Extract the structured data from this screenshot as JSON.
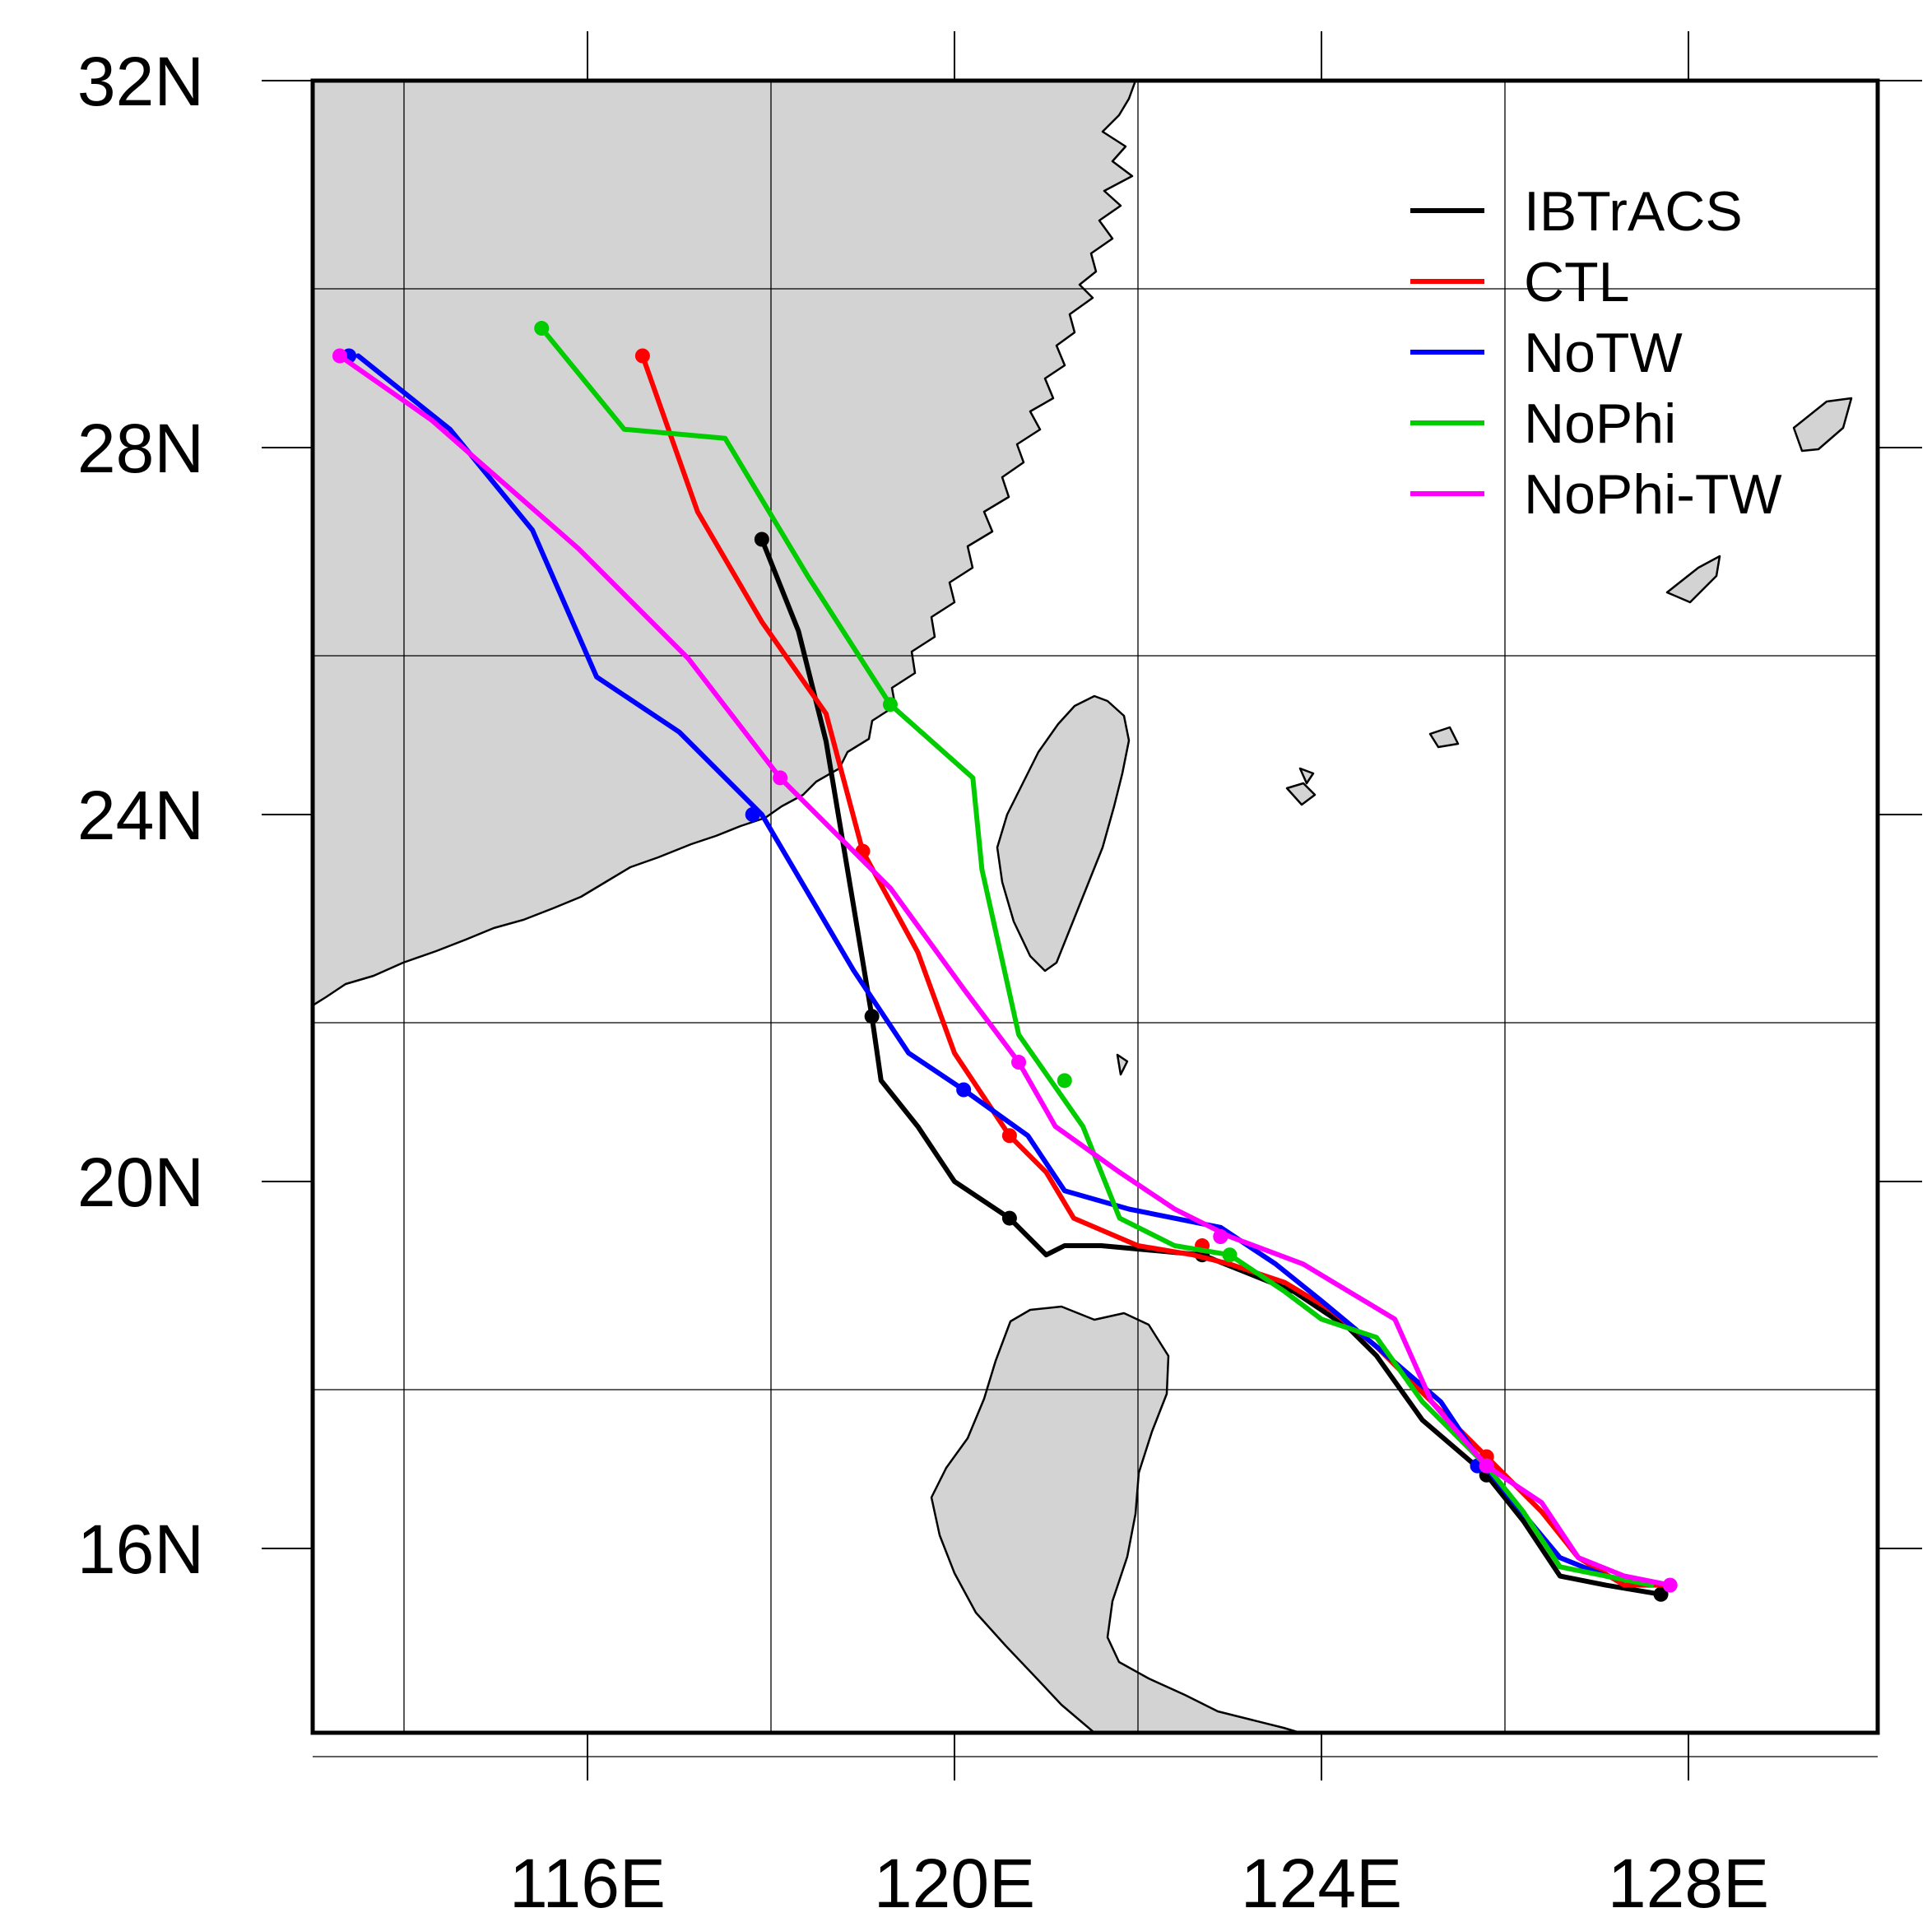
{
  "map": {
    "lat_ticks": [
      {
        "label": "32N",
        "value": 32
      },
      {
        "label": "28N",
        "value": 28
      },
      {
        "label": "24N",
        "value": 24
      },
      {
        "label": "20N",
        "value": 20
      },
      {
        "label": "16N",
        "value": 16
      }
    ],
    "lon_ticks": [
      {
        "label": "116E",
        "value": 116
      },
      {
        "label": "120E",
        "value": 120
      },
      {
        "label": "124E",
        "value": 124
      },
      {
        "label": "128E",
        "value": 128
      }
    ],
    "land_color": "#d3d3d3",
    "water_color": "#ffffff",
    "grid": true
  },
  "legend": {
    "placement": "top-right",
    "entries": [
      {
        "label": "IBTrACS",
        "color": "#000000"
      },
      {
        "label": "CTL",
        "color": "#ff0000"
      },
      {
        "label": "NoTW",
        "color": "#0000ff"
      },
      {
        "label": "NoPhi",
        "color": "#00cc00"
      },
      {
        "label": "NoPhi-TW",
        "color": "#ff00ff"
      }
    ]
  },
  "chart_data": {
    "type": "line",
    "x_axis": "longitude (°E)",
    "y_axis": "latitude (°N)",
    "xlim": [
      113.0,
      130.0
    ],
    "ylim": [
      14.0,
      32.0
    ],
    "series": [
      {
        "name": "IBTrACS",
        "color": "#000000",
        "points": [
          [
            127.7,
            15.5
          ],
          [
            127.1,
            15.6
          ],
          [
            126.6,
            15.7
          ],
          [
            126.2,
            16.3
          ],
          [
            125.8,
            16.8
          ],
          [
            125.1,
            17.4
          ],
          [
            124.6,
            18.1
          ],
          [
            124.3,
            18.4
          ],
          [
            123.7,
            18.8
          ],
          [
            123.2,
            19.0
          ],
          [
            122.7,
            19.2
          ],
          [
            121.6,
            19.3
          ],
          [
            121.2,
            19.3
          ],
          [
            121.0,
            19.2
          ],
          [
            120.6,
            19.6
          ],
          [
            120.0,
            20.0
          ],
          [
            119.6,
            20.6
          ],
          [
            119.2,
            21.1
          ],
          [
            119.1,
            21.8
          ],
          [
            118.9,
            23.0
          ],
          [
            118.6,
            24.8
          ],
          [
            118.3,
            26.0
          ],
          [
            117.9,
            27.0
          ]
        ],
        "markers": [
          [
            127.7,
            15.5
          ],
          [
            125.8,
            16.8
          ],
          [
            122.7,
            19.2
          ],
          [
            120.6,
            19.6
          ],
          [
            119.1,
            21.8
          ],
          [
            117.9,
            27.0
          ]
        ]
      },
      {
        "name": "CTL",
        "color": "#ff0000",
        "points": [
          [
            127.8,
            15.6
          ],
          [
            127.3,
            15.6
          ],
          [
            126.8,
            15.9
          ],
          [
            126.4,
            16.4
          ],
          [
            125.8,
            17.0
          ],
          [
            125.3,
            17.5
          ],
          [
            124.6,
            18.2
          ],
          [
            124.1,
            18.6
          ],
          [
            123.6,
            18.9
          ],
          [
            123.0,
            19.1
          ],
          [
            122.6,
            19.2
          ],
          [
            122.0,
            19.3
          ],
          [
            121.3,
            19.6
          ],
          [
            121.0,
            20.1
          ],
          [
            120.6,
            20.5
          ],
          [
            120.0,
            21.4
          ],
          [
            119.6,
            22.5
          ],
          [
            119.0,
            23.6
          ],
          [
            118.6,
            25.1
          ],
          [
            117.9,
            26.1
          ],
          [
            117.2,
            27.3
          ],
          [
            116.6,
            29.0
          ]
        ],
        "markers": [
          [
            125.8,
            17.0
          ],
          [
            122.7,
            19.3
          ],
          [
            120.6,
            20.5
          ],
          [
            119.0,
            23.6
          ],
          [
            116.6,
            29.0
          ]
        ]
      },
      {
        "name": "NoTW",
        "color": "#0000ff",
        "points": [
          [
            127.6,
            15.6
          ],
          [
            127.1,
            15.7
          ],
          [
            126.6,
            15.9
          ],
          [
            126.1,
            16.5
          ],
          [
            125.7,
            17.0
          ],
          [
            125.3,
            17.6
          ],
          [
            124.6,
            18.2
          ],
          [
            124.0,
            18.7
          ],
          [
            123.5,
            19.1
          ],
          [
            122.9,
            19.5
          ],
          [
            121.9,
            19.7
          ],
          [
            121.2,
            19.9
          ],
          [
            120.8,
            20.5
          ],
          [
            120.1,
            21.0
          ],
          [
            119.5,
            21.4
          ],
          [
            118.9,
            22.3
          ],
          [
            117.9,
            24.0
          ],
          [
            117.0,
            24.9
          ],
          [
            116.1,
            25.5
          ],
          [
            115.4,
            27.1
          ],
          [
            114.5,
            28.2
          ],
          [
            113.5,
            29.0
          ]
        ],
        "markers": [
          [
            125.7,
            16.9
          ],
          [
            122.9,
            19.4
          ],
          [
            120.1,
            21.0
          ],
          [
            117.8,
            24.0
          ],
          [
            113.4,
            29.0
          ]
        ]
      },
      {
        "name": "NoPhi",
        "color": "#00cc00",
        "points": [
          [
            127.6,
            15.6
          ],
          [
            127.1,
            15.7
          ],
          [
            126.6,
            15.8
          ],
          [
            126.2,
            16.4
          ],
          [
            125.8,
            16.9
          ],
          [
            125.1,
            17.6
          ],
          [
            124.6,
            18.3
          ],
          [
            124.0,
            18.5
          ],
          [
            123.6,
            18.8
          ],
          [
            123.0,
            19.2
          ],
          [
            122.4,
            19.3
          ],
          [
            121.8,
            19.6
          ],
          [
            121.4,
            20.6
          ],
          [
            120.7,
            21.6
          ],
          [
            120.3,
            23.4
          ],
          [
            120.2,
            24.4
          ],
          [
            119.3,
            25.2
          ],
          [
            118.4,
            26.6
          ],
          [
            117.5,
            28.1
          ],
          [
            116.4,
            28.2
          ],
          [
            115.5,
            29.3
          ]
        ],
        "markers": [
          [
            125.8,
            16.9
          ],
          [
            123.0,
            19.2
          ],
          [
            121.2,
            21.1
          ],
          [
            119.3,
            25.2
          ],
          [
            115.5,
            29.3
          ]
        ]
      },
      {
        "name": "NoPhi-TW",
        "color": "#ff00ff",
        "points": [
          [
            127.8,
            15.6
          ],
          [
            127.3,
            15.7
          ],
          [
            126.8,
            15.9
          ],
          [
            126.4,
            16.5
          ],
          [
            125.8,
            16.9
          ],
          [
            125.2,
            17.6
          ],
          [
            124.8,
            18.5
          ],
          [
            124.3,
            18.8
          ],
          [
            123.8,
            19.1
          ],
          [
            123.0,
            19.4
          ],
          [
            122.4,
            19.7
          ],
          [
            121.8,
            20.1
          ],
          [
            121.1,
            20.6
          ],
          [
            120.7,
            21.3
          ],
          [
            120.1,
            22.1
          ],
          [
            119.3,
            23.2
          ],
          [
            118.1,
            24.4
          ],
          [
            117.1,
            25.7
          ],
          [
            115.9,
            26.9
          ],
          [
            114.3,
            28.3
          ],
          [
            113.3,
            29.0
          ]
        ],
        "markers": [
          [
            127.8,
            15.6
          ],
          [
            125.8,
            16.9
          ],
          [
            122.9,
            19.4
          ],
          [
            120.7,
            21.3
          ],
          [
            118.1,
            24.4
          ],
          [
            113.3,
            29.0
          ]
        ]
      }
    ]
  }
}
